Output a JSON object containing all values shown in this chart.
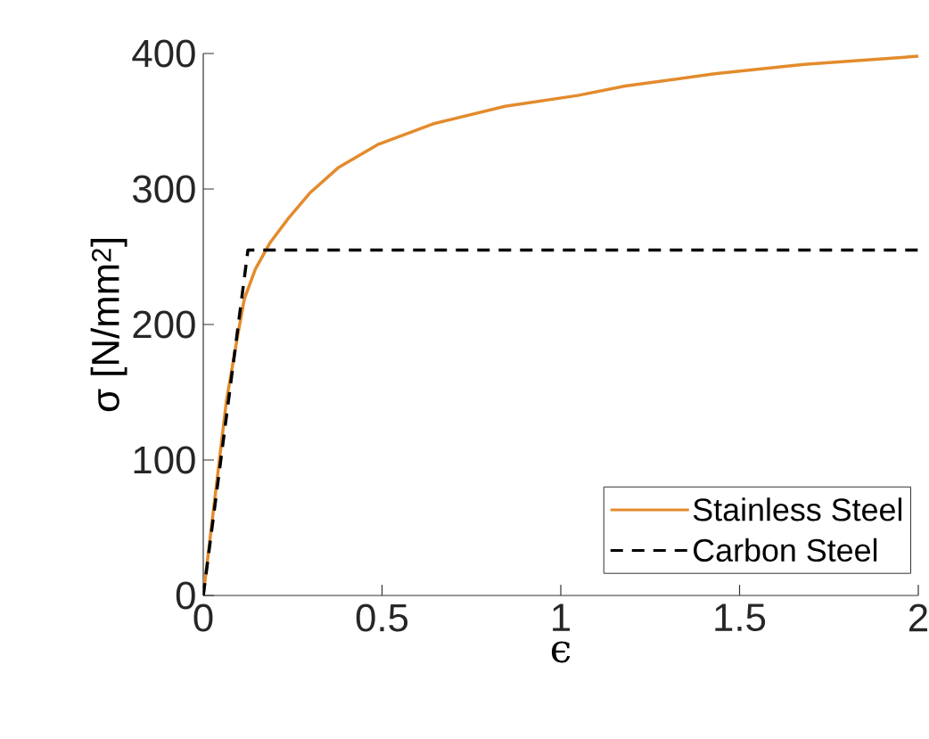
{
  "chart_data": {
    "type": "line",
    "xlabel": "ϵ",
    "ylabel": "σ [N/mm$^{2}$]",
    "xlim": [
      0,
      2
    ],
    "ylim": [
      0,
      400
    ],
    "xticks": [
      0,
      0.5,
      1,
      1.5,
      2
    ],
    "yticks": [
      0,
      100,
      200,
      300,
      400
    ],
    "grid": false,
    "legend": "bottom right",
    "series": [
      {
        "name": "Stainless Steel",
        "color": "#e38b2c",
        "line_style": "solid",
        "x": [
          0,
          0.065,
          0.095,
          0.115,
          0.146,
          0.186,
          0.237,
          0.298,
          0.379,
          0.49,
          0.642,
          0.844,
          1.047,
          1.18,
          1.43,
          1.68,
          2.0
        ],
        "values": [
          0,
          144,
          190,
          219,
          241,
          260,
          278,
          297,
          316,
          333,
          348,
          361,
          369,
          376,
          385,
          392,
          398
        ]
      },
      {
        "name": "Carbon Steel",
        "color": "#000000",
        "line_style": "dashed",
        "x": [
          0,
          0.125,
          2
        ],
        "values": [
          0,
          255,
          255
        ]
      }
    ]
  }
}
